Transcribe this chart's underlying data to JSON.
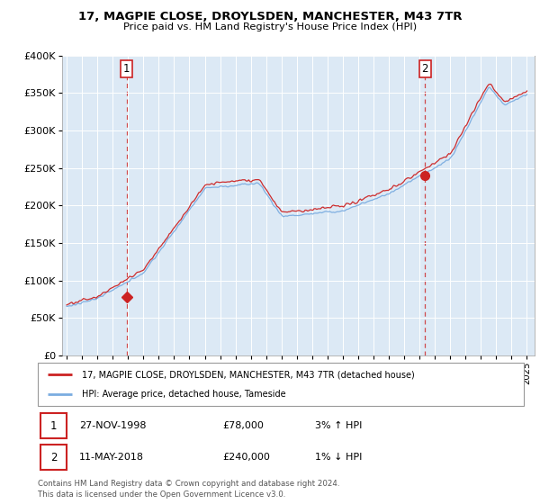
{
  "title_line1": "17, MAGPIE CLOSE, DROYLSDEN, MANCHESTER, M43 7TR",
  "title_line2": "Price paid vs. HM Land Registry's House Price Index (HPI)",
  "yticks": [
    0,
    50000,
    100000,
    150000,
    200000,
    250000,
    300000,
    350000,
    400000
  ],
  "ytick_labels": [
    "£0",
    "£50K",
    "£100K",
    "£150K",
    "£200K",
    "£250K",
    "£300K",
    "£350K",
    "£400K"
  ],
  "xmin": 1994.7,
  "xmax": 2025.5,
  "ymin": 0,
  "ymax": 400000,
  "red_line_color": "#cc2222",
  "blue_line_color": "#7aace0",
  "plot_bg_color": "#dce9f5",
  "bg_color": "#ffffff",
  "grid_color": "#ffffff",
  "legend_label_red": "17, MAGPIE CLOSE, DROYLSDEN, MANCHESTER, M43 7TR (detached house)",
  "legend_label_blue": "HPI: Average price, detached house, Tameside",
  "point1_x": 1998.91,
  "point1_y": 78000,
  "point1_label": "1",
  "point2_x": 2018.36,
  "point2_y": 240000,
  "point2_label": "2",
  "annotation1_date": "27-NOV-1998",
  "annotation1_price": "£78,000",
  "annotation1_hpi": "3% ↑ HPI",
  "annotation2_date": "11-MAY-2018",
  "annotation2_price": "£240,000",
  "annotation2_hpi": "1% ↓ HPI",
  "footer": "Contains HM Land Registry data © Crown copyright and database right 2024.\nThis data is licensed under the Open Government Licence v3.0.",
  "xticks": [
    1995,
    1996,
    1997,
    1998,
    1999,
    2000,
    2001,
    2002,
    2003,
    2004,
    2005,
    2006,
    2007,
    2008,
    2009,
    2010,
    2011,
    2012,
    2013,
    2014,
    2015,
    2016,
    2017,
    2018,
    2019,
    2020,
    2021,
    2022,
    2023,
    2024,
    2025
  ]
}
